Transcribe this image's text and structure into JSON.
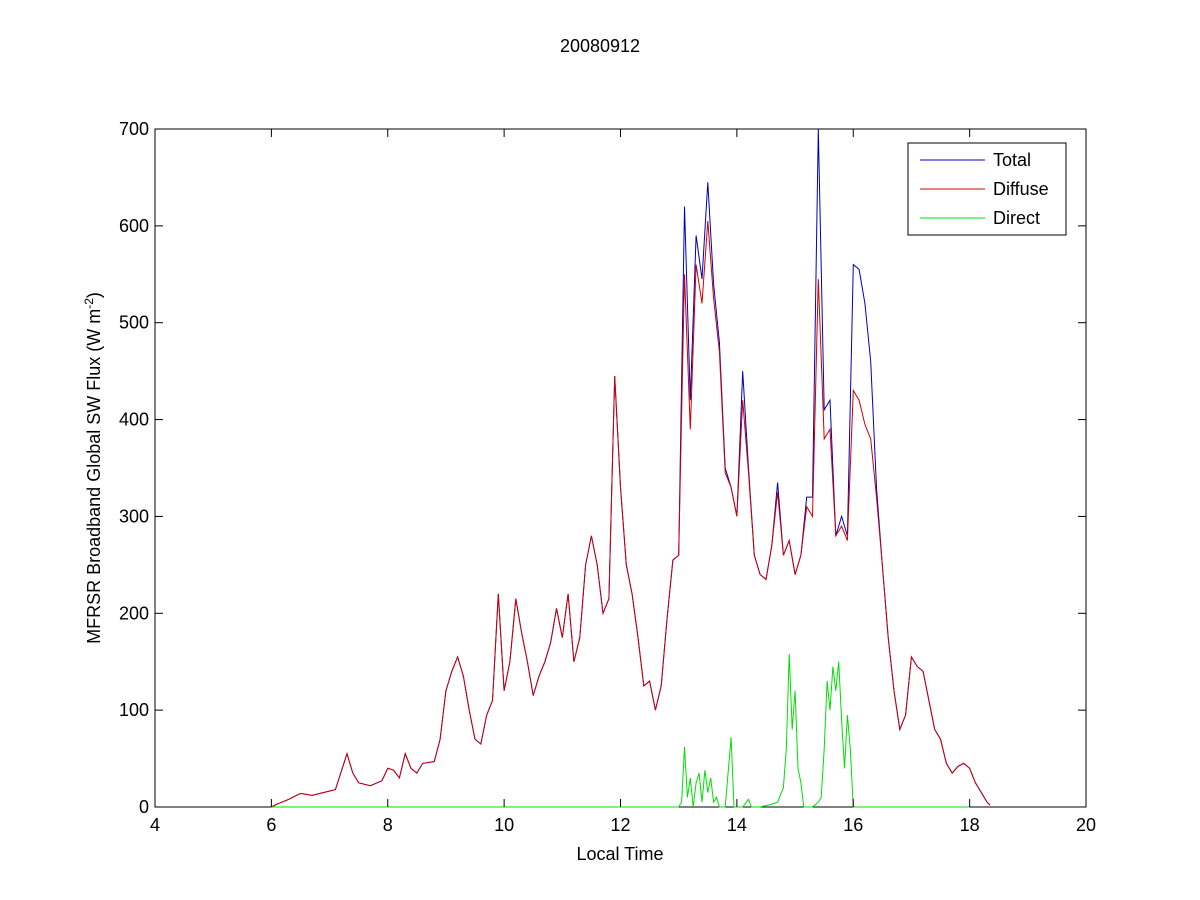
{
  "chart_data": {
    "type": "line",
    "title": "20080912",
    "xlabel": "Local Time",
    "ylabel": "MFRSR Broadband Global SW Flux (W m",
    "ylabel_sup": "-2",
    "ylabel_close": ")",
    "xlim": [
      4,
      20
    ],
    "ylim": [
      0,
      700
    ],
    "xticks": [
      4,
      6,
      8,
      10,
      12,
      14,
      16,
      18,
      20
    ],
    "yticks": [
      0,
      100,
      200,
      300,
      400,
      500,
      600,
      700
    ],
    "grid": false,
    "legend_position": "top-right",
    "series": [
      {
        "name": "Total",
        "color": "#0000c0",
        "points": [
          [
            6.0,
            0
          ],
          [
            6.1,
            3
          ],
          [
            6.3,
            8
          ],
          [
            6.5,
            14
          ],
          [
            6.7,
            12
          ],
          [
            6.9,
            15
          ],
          [
            7.1,
            18
          ],
          [
            7.3,
            55
          ],
          [
            7.4,
            35
          ],
          [
            7.5,
            25
          ],
          [
            7.7,
            22
          ],
          [
            7.9,
            27
          ],
          [
            8.0,
            40
          ],
          [
            8.1,
            38
          ],
          [
            8.2,
            30
          ],
          [
            8.3,
            55
          ],
          [
            8.4,
            40
          ],
          [
            8.5,
            35
          ],
          [
            8.6,
            45
          ],
          [
            8.8,
            47
          ],
          [
            8.9,
            70
          ],
          [
            9.0,
            120
          ],
          [
            9.1,
            140
          ],
          [
            9.2,
            155
          ],
          [
            9.3,
            135
          ],
          [
            9.4,
            100
          ],
          [
            9.5,
            70
          ],
          [
            9.6,
            65
          ],
          [
            9.7,
            95
          ],
          [
            9.8,
            110
          ],
          [
            9.9,
            220
          ],
          [
            10.0,
            120
          ],
          [
            10.1,
            150
          ],
          [
            10.2,
            215
          ],
          [
            10.3,
            180
          ],
          [
            10.4,
            150
          ],
          [
            10.5,
            115
          ],
          [
            10.6,
            135
          ],
          [
            10.7,
            150
          ],
          [
            10.8,
            170
          ],
          [
            10.9,
            205
          ],
          [
            11.0,
            175
          ],
          [
            11.1,
            220
          ],
          [
            11.2,
            150
          ],
          [
            11.3,
            175
          ],
          [
            11.4,
            250
          ],
          [
            11.5,
            280
          ],
          [
            11.6,
            250
          ],
          [
            11.7,
            200
          ],
          [
            11.8,
            215
          ],
          [
            11.9,
            445
          ],
          [
            12.0,
            330
          ],
          [
            12.1,
            250
          ],
          [
            12.2,
            220
          ],
          [
            12.3,
            175
          ],
          [
            12.4,
            125
          ],
          [
            12.5,
            130
          ],
          [
            12.6,
            100
          ],
          [
            12.7,
            125
          ],
          [
            12.8,
            195
          ],
          [
            12.9,
            255
          ],
          [
            13.0,
            260
          ],
          [
            13.1,
            620
          ],
          [
            13.2,
            420
          ],
          [
            13.3,
            590
          ],
          [
            13.4,
            545
          ],
          [
            13.5,
            645
          ],
          [
            13.6,
            540
          ],
          [
            13.7,
            480
          ],
          [
            13.8,
            350
          ],
          [
            13.9,
            330
          ],
          [
            14.0,
            300
          ],
          [
            14.1,
            450
          ],
          [
            14.2,
            350
          ],
          [
            14.3,
            260
          ],
          [
            14.4,
            240
          ],
          [
            14.5,
            235
          ],
          [
            14.6,
            270
          ],
          [
            14.7,
            335
          ],
          [
            14.8,
            260
          ],
          [
            14.9,
            275
          ],
          [
            15.0,
            240
          ],
          [
            15.1,
            260
          ],
          [
            15.2,
            320
          ],
          [
            15.3,
            320
          ],
          [
            15.4,
            700
          ],
          [
            15.5,
            410
          ],
          [
            15.6,
            420
          ],
          [
            15.7,
            280
          ],
          [
            15.8,
            300
          ],
          [
            15.9,
            280
          ],
          [
            16.0,
            560
          ],
          [
            16.1,
            555
          ],
          [
            16.2,
            520
          ],
          [
            16.3,
            460
          ],
          [
            16.4,
            330
          ],
          [
            16.5,
            250
          ],
          [
            16.6,
            175
          ],
          [
            16.7,
            120
          ],
          [
            16.8,
            80
          ],
          [
            16.9,
            95
          ],
          [
            17.0,
            155
          ],
          [
            17.1,
            145
          ],
          [
            17.2,
            140
          ],
          [
            17.3,
            110
          ],
          [
            17.4,
            80
          ],
          [
            17.5,
            70
          ],
          [
            17.6,
            45
          ],
          [
            17.7,
            35
          ],
          [
            17.8,
            42
          ],
          [
            17.9,
            45
          ],
          [
            18.0,
            40
          ],
          [
            18.1,
            25
          ],
          [
            18.2,
            15
          ],
          [
            18.3,
            5
          ],
          [
            18.35,
            2
          ]
        ]
      },
      {
        "name": "Diffuse",
        "color": "#d00000",
        "points": [
          [
            6.0,
            0
          ],
          [
            6.1,
            3
          ],
          [
            6.3,
            8
          ],
          [
            6.5,
            14
          ],
          [
            6.7,
            12
          ],
          [
            6.9,
            15
          ],
          [
            7.1,
            18
          ],
          [
            7.3,
            55
          ],
          [
            7.4,
            35
          ],
          [
            7.5,
            25
          ],
          [
            7.7,
            22
          ],
          [
            7.9,
            27
          ],
          [
            8.0,
            40
          ],
          [
            8.1,
            38
          ],
          [
            8.2,
            30
          ],
          [
            8.3,
            55
          ],
          [
            8.4,
            40
          ],
          [
            8.5,
            35
          ],
          [
            8.6,
            45
          ],
          [
            8.8,
            47
          ],
          [
            8.9,
            70
          ],
          [
            9.0,
            120
          ],
          [
            9.1,
            140
          ],
          [
            9.2,
            155
          ],
          [
            9.3,
            135
          ],
          [
            9.4,
            100
          ],
          [
            9.5,
            70
          ],
          [
            9.6,
            65
          ],
          [
            9.7,
            95
          ],
          [
            9.8,
            110
          ],
          [
            9.9,
            220
          ],
          [
            10.0,
            120
          ],
          [
            10.1,
            150
          ],
          [
            10.2,
            215
          ],
          [
            10.3,
            180
          ],
          [
            10.4,
            150
          ],
          [
            10.5,
            115
          ],
          [
            10.6,
            135
          ],
          [
            10.7,
            150
          ],
          [
            10.8,
            170
          ],
          [
            10.9,
            205
          ],
          [
            11.0,
            175
          ],
          [
            11.1,
            220
          ],
          [
            11.2,
            150
          ],
          [
            11.3,
            175
          ],
          [
            11.4,
            250
          ],
          [
            11.5,
            280
          ],
          [
            11.6,
            250
          ],
          [
            11.7,
            200
          ],
          [
            11.8,
            215
          ],
          [
            11.9,
            445
          ],
          [
            12.0,
            330
          ],
          [
            12.1,
            250
          ],
          [
            12.2,
            220
          ],
          [
            12.3,
            175
          ],
          [
            12.4,
            125
          ],
          [
            12.5,
            130
          ],
          [
            12.6,
            100
          ],
          [
            12.7,
            125
          ],
          [
            12.8,
            195
          ],
          [
            12.9,
            255
          ],
          [
            13.0,
            260
          ],
          [
            13.1,
            550
          ],
          [
            13.2,
            390
          ],
          [
            13.3,
            560
          ],
          [
            13.4,
            520
          ],
          [
            13.5,
            605
          ],
          [
            13.6,
            525
          ],
          [
            13.7,
            470
          ],
          [
            13.8,
            345
          ],
          [
            13.9,
            330
          ],
          [
            14.0,
            300
          ],
          [
            14.1,
            420
          ],
          [
            14.2,
            345
          ],
          [
            14.3,
            260
          ],
          [
            14.4,
            240
          ],
          [
            14.5,
            235
          ],
          [
            14.6,
            270
          ],
          [
            14.7,
            325
          ],
          [
            14.8,
            260
          ],
          [
            14.9,
            275
          ],
          [
            15.0,
            240
          ],
          [
            15.1,
            260
          ],
          [
            15.2,
            310
          ],
          [
            15.3,
            300
          ],
          [
            15.4,
            545
          ],
          [
            15.5,
            380
          ],
          [
            15.6,
            390
          ],
          [
            15.7,
            280
          ],
          [
            15.8,
            290
          ],
          [
            15.9,
            275
          ],
          [
            16.0,
            430
          ],
          [
            16.1,
            420
          ],
          [
            16.2,
            395
          ],
          [
            16.3,
            380
          ],
          [
            16.4,
            320
          ],
          [
            16.5,
            250
          ],
          [
            16.6,
            175
          ],
          [
            16.7,
            120
          ],
          [
            16.8,
            80
          ],
          [
            16.9,
            95
          ],
          [
            17.0,
            155
          ],
          [
            17.1,
            145
          ],
          [
            17.2,
            140
          ],
          [
            17.3,
            110
          ],
          [
            17.4,
            80
          ],
          [
            17.5,
            70
          ],
          [
            17.6,
            45
          ],
          [
            17.7,
            35
          ],
          [
            17.8,
            42
          ],
          [
            17.9,
            45
          ],
          [
            18.0,
            40
          ],
          [
            18.1,
            25
          ],
          [
            18.2,
            15
          ],
          [
            18.3,
            5
          ],
          [
            18.35,
            2
          ]
        ]
      },
      {
        "name": "Direct",
        "color": "#00e000",
        "points": [
          [
            6.0,
            0
          ],
          [
            7.0,
            0
          ],
          [
            8.0,
            0
          ],
          [
            9.0,
            0
          ],
          [
            10.0,
            0
          ],
          [
            11.0,
            0
          ],
          [
            12.0,
            0
          ],
          [
            13.0,
            0
          ],
          [
            13.05,
            5
          ],
          [
            13.1,
            62
          ],
          [
            13.15,
            10
          ],
          [
            13.2,
            30
          ],
          [
            13.25,
            0
          ],
          [
            13.3,
            25
          ],
          [
            13.35,
            35
          ],
          [
            13.4,
            5
          ],
          [
            13.45,
            38
          ],
          [
            13.5,
            15
          ],
          [
            13.55,
            30
          ],
          [
            13.6,
            5
          ],
          [
            13.65,
            10
          ],
          [
            13.7,
            0
          ],
          [
            13.8,
            0
          ],
          [
            13.9,
            72
          ],
          [
            13.95,
            0
          ],
          [
            14.1,
            0
          ],
          [
            14.2,
            8
          ],
          [
            14.25,
            0
          ],
          [
            14.4,
            0
          ],
          [
            14.6,
            3
          ],
          [
            14.7,
            5
          ],
          [
            14.8,
            20
          ],
          [
            14.85,
            60
          ],
          [
            14.9,
            158
          ],
          [
            14.95,
            80
          ],
          [
            15.0,
            120
          ],
          [
            15.05,
            40
          ],
          [
            15.1,
            25
          ],
          [
            15.15,
            0
          ],
          [
            15.3,
            0
          ],
          [
            15.4,
            5
          ],
          [
            15.45,
            10
          ],
          [
            15.5,
            60
          ],
          [
            15.55,
            130
          ],
          [
            15.6,
            100
          ],
          [
            15.65,
            145
          ],
          [
            15.7,
            120
          ],
          [
            15.75,
            150
          ],
          [
            15.8,
            90
          ],
          [
            15.85,
            40
          ],
          [
            15.9,
            95
          ],
          [
            15.95,
            60
          ],
          [
            16.0,
            0
          ],
          [
            16.5,
            0
          ],
          [
            17.0,
            0
          ],
          [
            17.5,
            0
          ],
          [
            18.0,
            0
          ]
        ]
      }
    ]
  }
}
